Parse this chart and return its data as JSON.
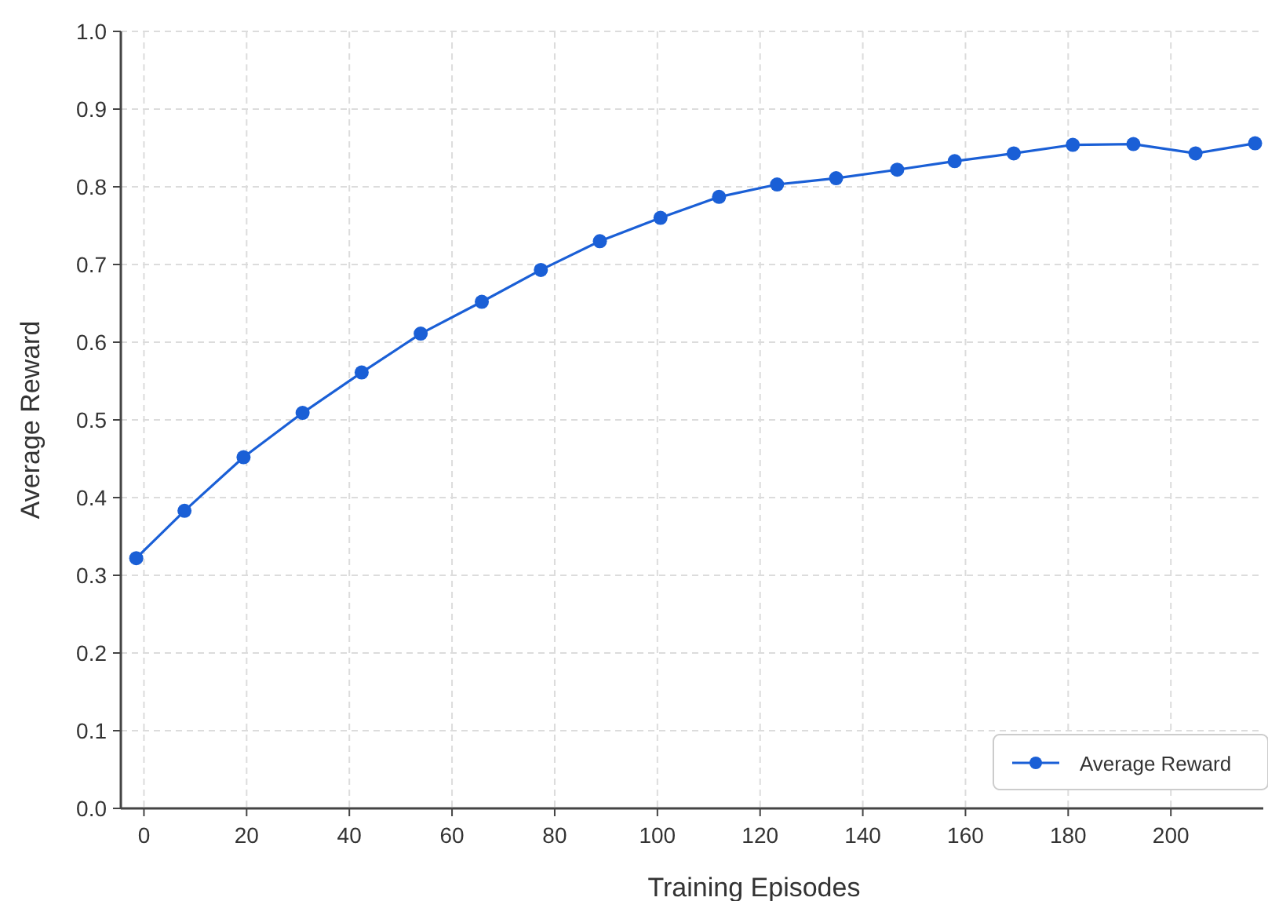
{
  "chart_data": {
    "type": "line",
    "xlabel": "Training Episodes",
    "ylabel": "Average Reward",
    "x": [
      -1.5,
      7.9,
      19.4,
      30.9,
      42.4,
      53.9,
      65.8,
      77.3,
      88.8,
      100.6,
      112,
      123.3,
      134.8,
      146.7,
      157.9,
      169.4,
      180.9,
      192.7,
      204.8,
      216.4
    ],
    "series": [
      {
        "name": "Average Reward",
        "color": "#1a5fd6",
        "values": [
          0.322,
          0.383,
          0.452,
          0.509,
          0.561,
          0.611,
          0.652,
          0.693,
          0.73,
          0.76,
          0.787,
          0.803,
          0.811,
          0.822,
          0.833,
          0.843,
          0.854,
          0.855,
          0.843,
          0.856
        ]
      }
    ],
    "xlim": [
      -4.5,
      218
    ],
    "xticks": [
      0,
      20,
      40,
      60,
      80,
      100,
      120,
      140,
      160,
      180,
      200
    ],
    "ylim": [
      0,
      1
    ],
    "yticks": [
      {
        "value": 0,
        "label": "0.0"
      },
      {
        "value": 0.1,
        "label": "0.1"
      },
      {
        "value": 0.2,
        "label": "0.2"
      },
      {
        "value": 0.3,
        "label": "0.3"
      },
      {
        "value": 0.4,
        "label": "0.4"
      },
      {
        "value": 0.5,
        "label": "0.5"
      },
      {
        "value": 0.6,
        "label": "0.6"
      },
      {
        "value": 0.7,
        "label": "0.7"
      },
      {
        "value": 0.8,
        "label": "0.8"
      },
      {
        "value": 0.9,
        "label": "0.9"
      },
      {
        "value": 1,
        "label": "1.0"
      }
    ],
    "grid": true,
    "legend": "bottom right",
    "marker": "circle",
    "line_style": "solid"
  }
}
